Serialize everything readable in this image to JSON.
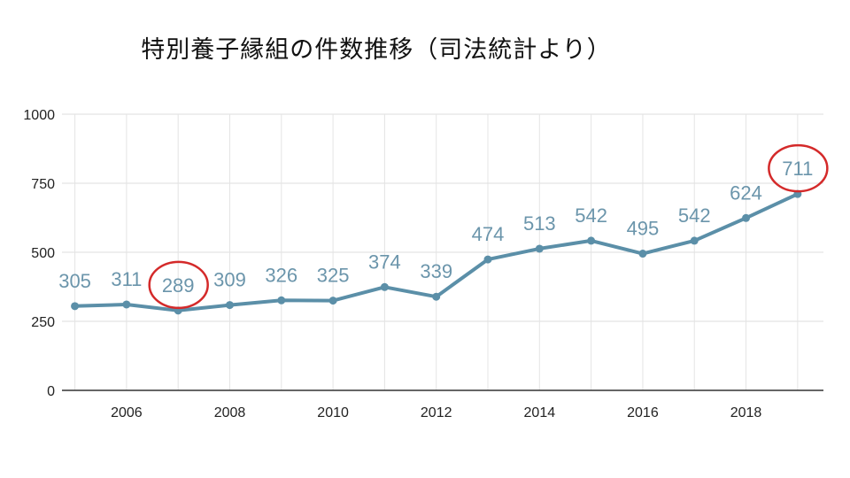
{
  "chart_data": {
    "type": "line",
    "title": "特別養子縁組の件数推移（司法統計より）",
    "xlabel": "",
    "ylabel": "",
    "ylim": [
      0,
      1000
    ],
    "xlim": [
      2004.75,
      2019.5
    ],
    "yticks": [
      0,
      250,
      500,
      750,
      1000
    ],
    "xticks": [
      2006,
      2008,
      2010,
      2012,
      2014,
      2016,
      2018
    ],
    "grid": true,
    "legend": "none",
    "series": [
      {
        "color": "#5b8fa8",
        "x": [
          2005,
          2006,
          2007,
          2008,
          2009,
          2010,
          2011,
          2012,
          2013,
          2014,
          2015,
          2016,
          2017,
          2018,
          2019
        ],
        "values": [
          305,
          311,
          289,
          309,
          326,
          325,
          374,
          339,
          474,
          513,
          542,
          495,
          542,
          624,
          711
        ]
      }
    ],
    "highlighted_points": [
      2007,
      2019
    ],
    "highlight_color": "#d42a2a"
  }
}
